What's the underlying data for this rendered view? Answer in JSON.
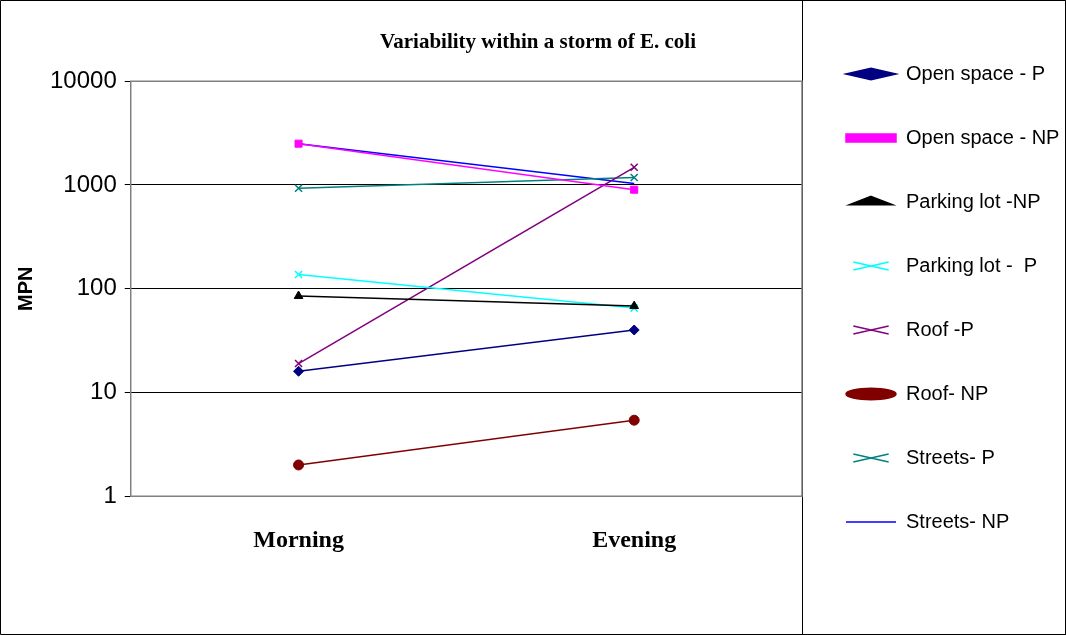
{
  "chart_data": {
    "type": "line",
    "title": "Variability within a storm of E. coli",
    "ylabel": "MPN",
    "categories": [
      "Morning",
      "Evening"
    ],
    "log": "y",
    "ylim": [
      1,
      10000
    ],
    "yticks": [
      1,
      10,
      100,
      1000,
      10000
    ],
    "grid": "y",
    "legend": "right",
    "series": [
      {
        "name": "Open space - P",
        "color": "#000080",
        "marker": "diamond",
        "values": [
          16,
          40
        ]
      },
      {
        "name": "Open space - NP",
        "color": "#ff00ff",
        "marker": "square",
        "values": [
          2500,
          900
        ]
      },
      {
        "name": "Parking lot -NP",
        "color": "#000000",
        "marker": "triangle",
        "values": [
          85,
          68
        ]
      },
      {
        "name": "Parking lot -  P",
        "color": "#00ffff",
        "marker": "cross",
        "values": [
          137,
          65
        ]
      },
      {
        "name": "Roof -P",
        "color": "#800080",
        "marker": "cross",
        "values": [
          19,
          1480
        ]
      },
      {
        "name": "Roof- NP",
        "color": "#800000",
        "marker": "circle",
        "values": [
          2,
          5.4
        ]
      },
      {
        "name": "Streets- P",
        "color": "#008080",
        "marker": "cross",
        "values": [
          930,
          1180
        ]
      },
      {
        "name": "Streets- NP",
        "color": "#0000ff",
        "marker": "none",
        "values": [
          2500,
          1030
        ]
      }
    ]
  }
}
